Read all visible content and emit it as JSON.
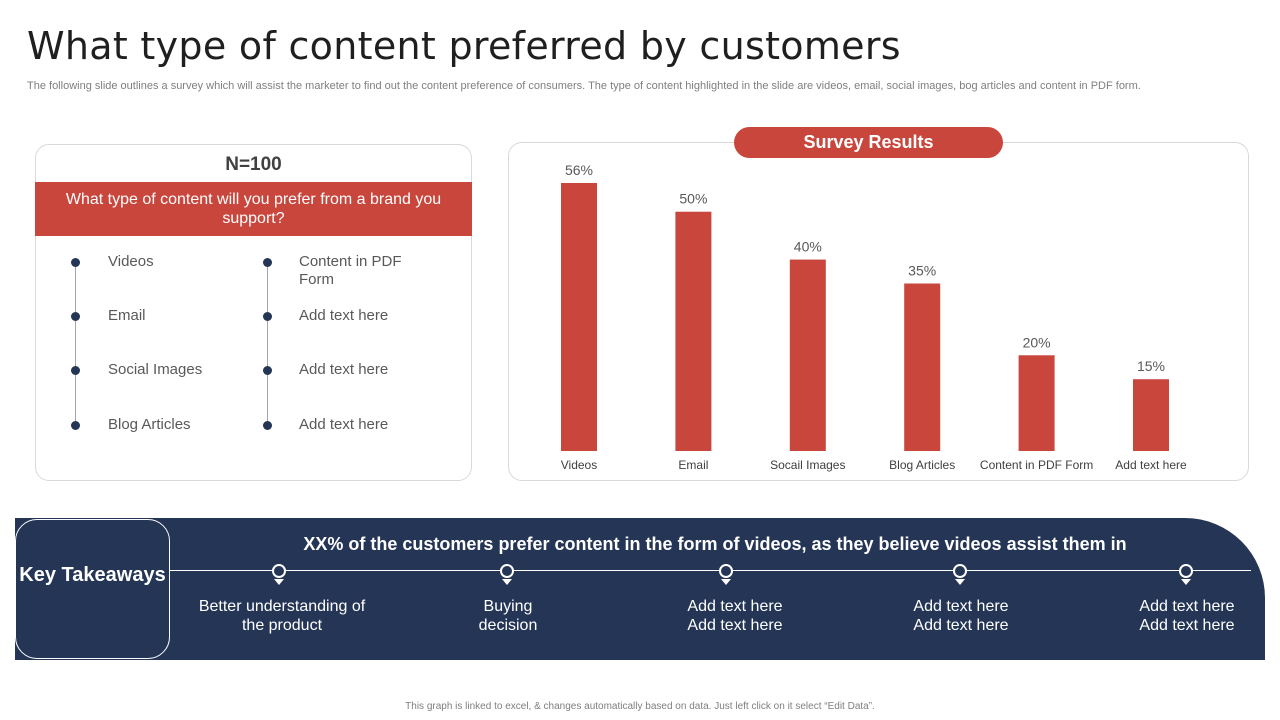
{
  "page": {
    "title": "What type of content preferred by customers",
    "subtitle": "The following slide outlines a survey which will assist the marketer to find out the content preference of consumers. The type  of content highlighted in the slide are videos, email, social images, bog articles and content in PDF form.",
    "footer": "This graph is linked to excel, & changes automatically  based on data. Just left click on it select “Edit Data”."
  },
  "survey": {
    "n_label": "N=100",
    "question": "What type of content will you prefer from a brand you support?",
    "options_left": [
      "Videos",
      "Email",
      "Social Images",
      "Blog Articles"
    ],
    "options_right": [
      "Content in PDF Form",
      "Add text here",
      "Add text here",
      "Add text here"
    ]
  },
  "results": {
    "heading": "Survey Results"
  },
  "chart_data": {
    "type": "bar",
    "categories": [
      "Videos",
      "Email",
      "Socail Images",
      "Blog Articles",
      "Content in PDF Form",
      "Add text here"
    ],
    "values": [
      56,
      50,
      40,
      35,
      20,
      15
    ],
    "value_labels": [
      "56%",
      "50%",
      "40%",
      "35%",
      "20%",
      "15%"
    ],
    "ylim": [
      0,
      56
    ],
    "grid": false,
    "bar_color": "#c9463d"
  },
  "takeaways": {
    "label": "Key Takeaways",
    "headline": "XX% of the customers prefer content in the form of videos, as they believe videos assist them in",
    "items": [
      "Better understanding of the product",
      "Buying decision",
      "Add text here Add text here",
      "Add text here Add text here",
      "Add text here Add text here"
    ]
  },
  "colors": {
    "accent": "#c9463d",
    "navy": "#243556"
  }
}
